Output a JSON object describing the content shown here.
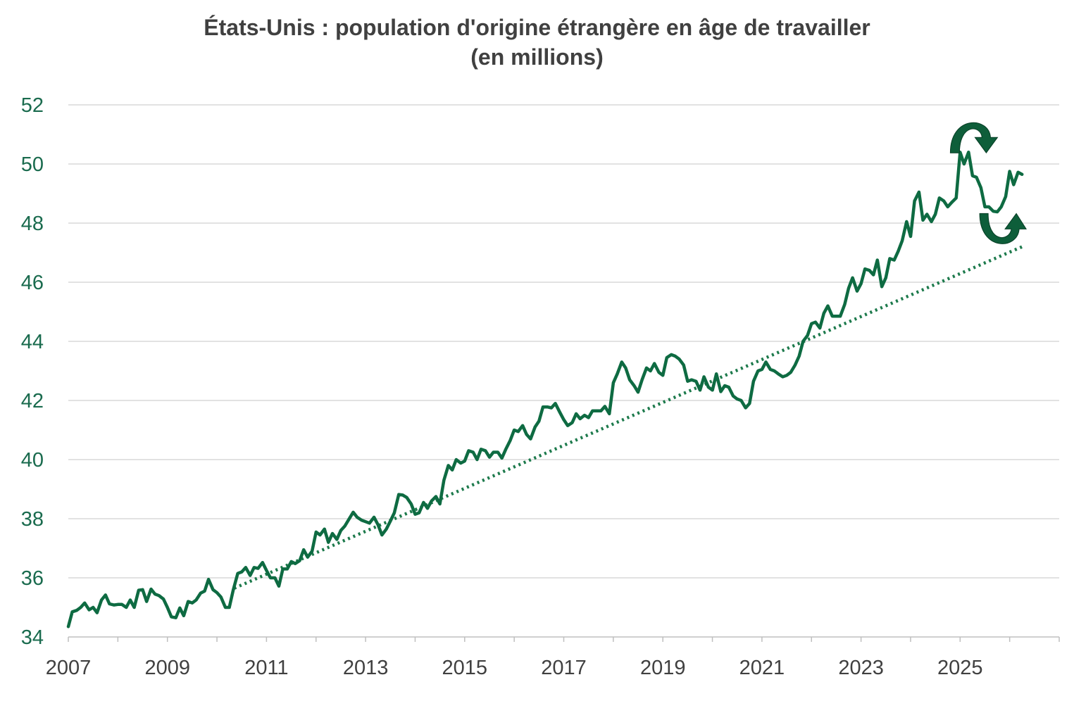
{
  "chart_data": {
    "type": "line",
    "title": "États-Unis : population d'origine étrangère en âge de travailler",
    "subtitle": "(en millions)",
    "xlabel": "",
    "ylabel": "",
    "ylim": [
      34,
      52
    ],
    "xlim": [
      2007,
      2027
    ],
    "yticks": [
      34,
      36,
      38,
      40,
      42,
      44,
      46,
      48,
      50,
      52
    ],
    "xtick_labels": [
      "2007",
      "2009",
      "2011",
      "2013",
      "2015",
      "2017",
      "2019",
      "2021",
      "2023",
      "2025"
    ],
    "grid": "horizontal",
    "legend": "none",
    "colors": {
      "series": "#0e6b42",
      "trend": "#1d7a4c",
      "grid": "#d9d9d9",
      "ytick": "#1a6b4e",
      "xtick": "#404040"
    },
    "series": [
      {
        "style": "solid",
        "points": [
          [
            2007.0,
            34.35
          ],
          [
            2007.08,
            34.85
          ],
          [
            2007.17,
            34.9
          ],
          [
            2007.25,
            35.0
          ],
          [
            2007.33,
            35.15
          ],
          [
            2007.42,
            34.92
          ],
          [
            2007.5,
            35.0
          ],
          [
            2007.58,
            34.82
          ],
          [
            2007.67,
            35.25
          ],
          [
            2007.75,
            35.42
          ],
          [
            2007.83,
            35.12
          ],
          [
            2007.92,
            35.08
          ],
          [
            2008.0,
            35.1
          ],
          [
            2008.08,
            35.1
          ],
          [
            2008.17,
            35.0
          ],
          [
            2008.25,
            35.25
          ],
          [
            2008.33,
            35.0
          ],
          [
            2008.42,
            35.58
          ],
          [
            2008.5,
            35.6
          ],
          [
            2008.58,
            35.2
          ],
          [
            2008.67,
            35.62
          ],
          [
            2008.75,
            35.45
          ],
          [
            2008.83,
            35.4
          ],
          [
            2008.92,
            35.28
          ],
          [
            2009.0,
            35.0
          ],
          [
            2009.08,
            34.68
          ],
          [
            2009.17,
            34.65
          ],
          [
            2009.25,
            34.98
          ],
          [
            2009.33,
            34.72
          ],
          [
            2009.42,
            35.2
          ],
          [
            2009.5,
            35.15
          ],
          [
            2009.58,
            35.25
          ],
          [
            2009.67,
            35.48
          ],
          [
            2009.75,
            35.55
          ],
          [
            2009.83,
            35.95
          ],
          [
            2009.92,
            35.6
          ],
          [
            2010.0,
            35.5
          ],
          [
            2010.08,
            35.35
          ],
          [
            2010.17,
            35.0
          ],
          [
            2010.25,
            35.0
          ],
          [
            2010.33,
            35.6
          ],
          [
            2010.42,
            36.15
          ],
          [
            2010.5,
            36.2
          ],
          [
            2010.58,
            36.35
          ],
          [
            2010.67,
            36.08
          ],
          [
            2010.75,
            36.35
          ],
          [
            2010.83,
            36.32
          ],
          [
            2010.92,
            36.52
          ],
          [
            2011.0,
            36.25
          ],
          [
            2011.08,
            36.0
          ],
          [
            2011.17,
            36.0
          ],
          [
            2011.25,
            35.72
          ],
          [
            2011.33,
            36.3
          ],
          [
            2011.42,
            36.3
          ],
          [
            2011.5,
            36.55
          ],
          [
            2011.58,
            36.48
          ],
          [
            2011.67,
            36.58
          ],
          [
            2011.75,
            36.95
          ],
          [
            2011.83,
            36.7
          ],
          [
            2011.92,
            36.9
          ],
          [
            2012.0,
            37.55
          ],
          [
            2012.08,
            37.45
          ],
          [
            2012.17,
            37.65
          ],
          [
            2012.25,
            37.2
          ],
          [
            2012.33,
            37.5
          ],
          [
            2012.42,
            37.3
          ],
          [
            2012.5,
            37.6
          ],
          [
            2012.58,
            37.75
          ],
          [
            2012.67,
            38.0
          ],
          [
            2012.75,
            38.22
          ],
          [
            2012.83,
            38.05
          ],
          [
            2012.92,
            37.95
          ],
          [
            2013.0,
            37.9
          ],
          [
            2013.08,
            37.85
          ],
          [
            2013.17,
            38.05
          ],
          [
            2013.25,
            37.8
          ],
          [
            2013.33,
            37.45
          ],
          [
            2013.42,
            37.65
          ],
          [
            2013.5,
            37.92
          ],
          [
            2013.58,
            38.2
          ],
          [
            2013.67,
            38.82
          ],
          [
            2013.75,
            38.8
          ],
          [
            2013.83,
            38.72
          ],
          [
            2013.92,
            38.5
          ],
          [
            2014.0,
            38.15
          ],
          [
            2014.08,
            38.2
          ],
          [
            2014.17,
            38.55
          ],
          [
            2014.25,
            38.35
          ],
          [
            2014.33,
            38.6
          ],
          [
            2014.42,
            38.75
          ],
          [
            2014.5,
            38.5
          ],
          [
            2014.58,
            39.3
          ],
          [
            2014.67,
            39.8
          ],
          [
            2014.75,
            39.65
          ],
          [
            2014.83,
            40.0
          ],
          [
            2014.92,
            39.88
          ],
          [
            2015.0,
            39.95
          ],
          [
            2015.08,
            40.3
          ],
          [
            2015.17,
            40.25
          ],
          [
            2015.25,
            40.0
          ],
          [
            2015.33,
            40.35
          ],
          [
            2015.42,
            40.3
          ],
          [
            2015.5,
            40.08
          ],
          [
            2015.58,
            40.25
          ],
          [
            2015.67,
            40.25
          ],
          [
            2015.75,
            40.05
          ],
          [
            2015.83,
            40.35
          ],
          [
            2015.92,
            40.65
          ],
          [
            2016.0,
            41.0
          ],
          [
            2016.08,
            40.95
          ],
          [
            2016.17,
            41.15
          ],
          [
            2016.25,
            40.85
          ],
          [
            2016.33,
            40.7
          ],
          [
            2016.42,
            41.1
          ],
          [
            2016.5,
            41.3
          ],
          [
            2016.58,
            41.78
          ],
          [
            2016.67,
            41.78
          ],
          [
            2016.75,
            41.75
          ],
          [
            2016.83,
            41.9
          ],
          [
            2016.92,
            41.6
          ],
          [
            2017.0,
            41.35
          ],
          [
            2017.08,
            41.15
          ],
          [
            2017.17,
            41.25
          ],
          [
            2017.25,
            41.55
          ],
          [
            2017.33,
            41.38
          ],
          [
            2017.42,
            41.5
          ],
          [
            2017.5,
            41.42
          ],
          [
            2017.58,
            41.65
          ],
          [
            2017.67,
            41.65
          ],
          [
            2017.75,
            41.65
          ],
          [
            2017.83,
            41.8
          ],
          [
            2017.92,
            41.55
          ],
          [
            2018.0,
            42.6
          ],
          [
            2018.08,
            42.9
          ],
          [
            2018.17,
            43.3
          ],
          [
            2018.25,
            43.1
          ],
          [
            2018.33,
            42.7
          ],
          [
            2018.42,
            42.5
          ],
          [
            2018.5,
            42.28
          ],
          [
            2018.58,
            42.7
          ],
          [
            2018.67,
            43.1
          ],
          [
            2018.75,
            43.0
          ],
          [
            2018.83,
            43.25
          ],
          [
            2018.92,
            42.95
          ],
          [
            2019.0,
            42.85
          ],
          [
            2019.08,
            43.45
          ],
          [
            2019.17,
            43.55
          ],
          [
            2019.25,
            43.5
          ],
          [
            2019.33,
            43.4
          ],
          [
            2019.42,
            43.2
          ],
          [
            2019.5,
            42.65
          ],
          [
            2019.58,
            42.7
          ],
          [
            2019.67,
            42.65
          ],
          [
            2019.75,
            42.35
          ],
          [
            2019.83,
            42.8
          ],
          [
            2019.92,
            42.45
          ],
          [
            2020.0,
            42.35
          ],
          [
            2020.08,
            42.9
          ],
          [
            2020.17,
            42.3
          ],
          [
            2020.25,
            42.5
          ],
          [
            2020.33,
            42.45
          ],
          [
            2020.42,
            42.15
          ],
          [
            2020.5,
            42.05
          ],
          [
            2020.58,
            42.0
          ],
          [
            2020.67,
            41.75
          ],
          [
            2020.75,
            41.9
          ],
          [
            2020.83,
            42.65
          ],
          [
            2020.92,
            43.0
          ],
          [
            2021.0,
            43.05
          ],
          [
            2021.08,
            43.3
          ],
          [
            2021.17,
            43.05
          ],
          [
            2021.25,
            43.0
          ],
          [
            2021.33,
            42.9
          ],
          [
            2021.42,
            42.8
          ],
          [
            2021.5,
            42.85
          ],
          [
            2021.58,
            42.95
          ],
          [
            2021.67,
            43.2
          ],
          [
            2021.75,
            43.5
          ],
          [
            2021.83,
            44.0
          ],
          [
            2021.92,
            44.2
          ],
          [
            2022.0,
            44.6
          ],
          [
            2022.08,
            44.65
          ],
          [
            2022.17,
            44.45
          ],
          [
            2022.25,
            44.95
          ],
          [
            2022.33,
            45.2
          ],
          [
            2022.42,
            44.85
          ],
          [
            2022.5,
            44.85
          ],
          [
            2022.58,
            44.85
          ],
          [
            2022.67,
            45.25
          ],
          [
            2022.75,
            45.8
          ],
          [
            2022.83,
            46.15
          ],
          [
            2022.92,
            45.7
          ],
          [
            2023.0,
            45.95
          ],
          [
            2023.08,
            46.45
          ],
          [
            2023.17,
            46.4
          ],
          [
            2023.25,
            46.25
          ],
          [
            2023.33,
            46.75
          ],
          [
            2023.42,
            45.85
          ],
          [
            2023.5,
            46.15
          ],
          [
            2023.58,
            46.8
          ],
          [
            2023.67,
            46.75
          ],
          [
            2023.75,
            47.05
          ],
          [
            2023.83,
            47.4
          ],
          [
            2023.92,
            48.05
          ],
          [
            2024.0,
            47.55
          ],
          [
            2024.08,
            48.75
          ],
          [
            2024.17,
            49.05
          ],
          [
            2024.25,
            48.1
          ],
          [
            2024.33,
            48.3
          ],
          [
            2024.42,
            48.05
          ],
          [
            2024.5,
            48.3
          ],
          [
            2024.58,
            48.85
          ],
          [
            2024.67,
            48.75
          ],
          [
            2024.75,
            48.55
          ],
          [
            2024.83,
            48.7
          ],
          [
            2024.92,
            48.85
          ],
          [
            2025.0,
            50.4
          ],
          [
            2025.08,
            50.0
          ],
          [
            2025.17,
            50.4
          ],
          [
            2025.25,
            49.6
          ],
          [
            2025.33,
            49.55
          ],
          [
            2025.42,
            49.2
          ],
          [
            2025.5,
            48.55
          ],
          [
            2025.58,
            48.55
          ],
          [
            2025.67,
            48.4
          ],
          [
            2025.75,
            48.38
          ],
          [
            2025.83,
            48.55
          ],
          [
            2025.92,
            48.9
          ],
          [
            2026.0,
            49.75
          ],
          [
            2026.08,
            49.3
          ],
          [
            2026.17,
            49.72
          ],
          [
            2026.25,
            49.65
          ]
        ]
      },
      {
        "style": "dotted",
        "points": [
          [
            2010.35,
            35.65
          ],
          [
            2026.25,
            47.2
          ]
        ]
      }
    ],
    "annotations": [
      {
        "kind": "curved-arrow",
        "direction": "over-and-down",
        "x": 2025.3,
        "y": 50.9
      },
      {
        "kind": "curved-arrow",
        "direction": "under-and-up",
        "x": 2025.85,
        "y": 47.8
      }
    ]
  }
}
